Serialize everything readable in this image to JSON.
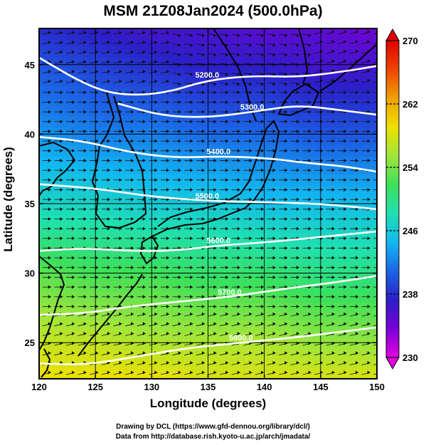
{
  "title": "MSM 21Z08Jan2024 (500.0hPa)",
  "x_axis_label": "Longitude (degrees)",
  "y_axis_label": "Latitude  (degrees)",
  "credits": {
    "line1": "Drawing by DCL (https://www.gfd-dennou.org/library/dcl/)",
    "line2": "Data from http://database.rish.kyoto-u.ac.jp/arch/jmadata/"
  },
  "chart_data": {
    "type": "heatmap",
    "xlim": [
      120,
      150
    ],
    "ylim": [
      22.4,
      47.6
    ],
    "x_ticks": [
      120,
      125,
      130,
      135,
      140,
      145,
      150
    ],
    "y_ticks": [
      25,
      30,
      35,
      40,
      45
    ],
    "grid": true,
    "field": "temperature (K), shaded",
    "colorbar": {
      "min": 230,
      "max": 270,
      "ticks": [
        230,
        238,
        246,
        254,
        262,
        270
      ],
      "placement": "right",
      "colors": [
        "#e000e0",
        "#7a00d8",
        "#2b1fc8",
        "#1b66e6",
        "#12b8f0",
        "#1fe0b0",
        "#3ce05a",
        "#a0e63a",
        "#f0e000",
        "#f0a000",
        "#ee4400",
        "#e00000"
      ]
    },
    "temperature_field": [
      {
        "lat": 47.6,
        "lon_values": [
          238,
          237,
          236,
          236,
          235,
          235,
          234
        ]
      },
      {
        "lat": 45,
        "lon_values": [
          240,
          239,
          238,
          237,
          237,
          236,
          236
        ]
      },
      {
        "lat": 40,
        "lon_values": [
          243,
          242,
          242,
          241,
          241,
          240,
          240
        ]
      },
      {
        "lat": 35,
        "lon_values": [
          247,
          247,
          246,
          246,
          245,
          245,
          245
        ]
      },
      {
        "lat": 30,
        "lon_values": [
          253,
          252,
          252,
          251,
          251,
          250,
          250
        ]
      },
      {
        "lat": 25,
        "lon_values": [
          257,
          257,
          256,
          256,
          256,
          255,
          255
        ]
      },
      {
        "lat": 22.4,
        "lon_values": [
          259,
          259,
          259,
          258,
          258,
          258,
          258
        ]
      }
    ],
    "height_contours": [
      {
        "label": "5200.0",
        "points": [
          [
            120,
            45.5
          ],
          [
            124,
            43.6
          ],
          [
            127,
            42.8
          ],
          [
            131,
            42.9
          ],
          [
            135,
            43.9
          ],
          [
            139,
            44.2
          ],
          [
            143,
            44.1
          ],
          [
            147,
            44.5
          ],
          [
            150,
            44.9
          ]
        ]
      },
      {
        "label": "5300.0",
        "points": [
          [
            127,
            42.2
          ],
          [
            131,
            41.3
          ],
          [
            135,
            41.2
          ],
          [
            139,
            41.6
          ],
          [
            143,
            42.1
          ],
          [
            147,
            41.7
          ],
          [
            150,
            41.4
          ]
        ]
      },
      {
        "label": "5400.0",
        "points": [
          [
            120,
            39.8
          ],
          [
            124,
            39.5
          ],
          [
            128,
            38.7
          ],
          [
            132,
            38.3
          ],
          [
            136,
            38.4
          ],
          [
            140,
            38.3
          ],
          [
            144,
            37.9
          ],
          [
            147,
            37.7
          ],
          [
            150,
            37.3
          ]
        ]
      },
      {
        "label": "5500.0",
        "points": [
          [
            120,
            36.4
          ],
          [
            125,
            36.1
          ],
          [
            130,
            35.5
          ],
          [
            135,
            35.2
          ],
          [
            140,
            35.1
          ],
          [
            145,
            35.0
          ],
          [
            150,
            34.6
          ]
        ]
      },
      {
        "label": "5600.0",
        "points": [
          [
            120,
            31.6
          ],
          [
            124,
            31.8
          ],
          [
            128,
            31.6
          ],
          [
            132,
            31.6
          ],
          [
            136,
            32.0
          ],
          [
            140,
            32.2
          ],
          [
            145,
            32.6
          ],
          [
            150,
            33.0
          ]
        ]
      },
      {
        "label": "5700.0",
        "points": [
          [
            120,
            27.0
          ],
          [
            124,
            27.1
          ],
          [
            128,
            27.6
          ],
          [
            133,
            28.0
          ],
          [
            137,
            28.3
          ],
          [
            142,
            28.9
          ],
          [
            146,
            29.3
          ],
          [
            150,
            29.8
          ]
        ]
      },
      {
        "label": "5800.0",
        "points": [
          [
            120,
            23.5
          ],
          [
            124,
            23.4
          ],
          [
            128,
            23.9
          ],
          [
            133,
            24.6
          ],
          [
            138,
            25.0
          ],
          [
            143,
            25.4
          ],
          [
            147,
            25.8
          ],
          [
            150,
            26.1
          ]
        ]
      }
    ],
    "wind_flow": "westerly, arrow vectors across domain"
  },
  "colors": {
    "contour": "#ffffff",
    "coast": "#000000",
    "grid": "#000000",
    "arrow": "#000000"
  }
}
